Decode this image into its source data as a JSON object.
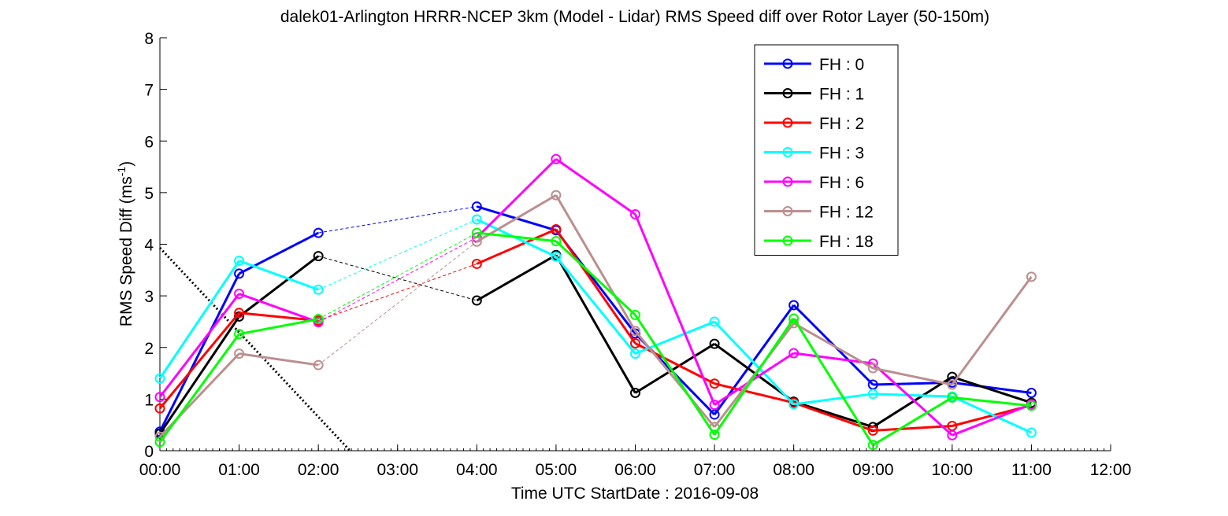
{
  "chart_data": {
    "type": "line",
    "title": "dalek01-Arlington HRRR-NCEP 3km (Model - Lidar) RMS Speed diff over Rotor Layer (50-150m)",
    "xlabel": "Time UTC    StartDate : 2016-09-08",
    "ylabel": "RMS Speed Diff (ms",
    "ylabel_sup": "-1",
    "ylabel_end": ")",
    "xlim": [
      0,
      12
    ],
    "ylim": [
      0,
      8
    ],
    "x_ticks": [
      "00:00",
      "01:00",
      "02:00",
      "03:00",
      "04:00",
      "05:00",
      "06:00",
      "07:00",
      "08:00",
      "09:00",
      "10:00",
      "11:00",
      "12:00"
    ],
    "y_ticks": [
      "0",
      "1",
      "2",
      "3",
      "4",
      "5",
      "6",
      "7",
      "8"
    ],
    "grid": false,
    "legend_position": "top-right",
    "x": [
      0,
      1,
      2,
      3,
      4,
      5,
      6,
      7,
      8,
      9,
      10,
      11
    ],
    "series": [
      {
        "name": "FH : 0",
        "color": "#0000ff",
        "values": [
          0.37,
          3.43,
          4.22,
          null,
          4.73,
          4.27,
          2.27,
          0.7,
          2.82,
          1.28,
          1.32,
          1.12
        ]
      },
      {
        "name": "FH : 1",
        "color": "#000000",
        "values": [
          0.33,
          2.6,
          3.77,
          null,
          2.91,
          3.79,
          1.12,
          2.07,
          0.95,
          0.46,
          1.43,
          0.93
        ]
      },
      {
        "name": "FH : 2",
        "color": "#ff0000",
        "values": [
          0.82,
          2.67,
          2.52,
          null,
          3.62,
          4.29,
          2.08,
          1.3,
          0.93,
          0.39,
          0.48,
          0.88
        ]
      },
      {
        "name": "FH : 3",
        "color": "#00ffff",
        "values": [
          1.4,
          3.68,
          3.12,
          null,
          4.48,
          3.76,
          1.88,
          2.5,
          0.9,
          1.1,
          1.05,
          0.35
        ]
      },
      {
        "name": "FH : 6",
        "color": "#ff00ff",
        "values": [
          1.04,
          3.04,
          2.49,
          null,
          4.13,
          5.65,
          4.58,
          0.89,
          1.89,
          1.69,
          0.3,
          0.9
        ]
      },
      {
        "name": "FH : 12",
        "color": "#bc8f8f",
        "values": [
          0.27,
          1.88,
          1.66,
          null,
          4.05,
          4.95,
          2.32,
          0.46,
          2.47,
          1.6,
          1.28,
          3.37
        ]
      },
      {
        "name": "FH : 18",
        "color": "#00ff00",
        "values": [
          0.17,
          2.26,
          2.55,
          null,
          4.22,
          4.06,
          2.63,
          0.31,
          2.56,
          0.11,
          1.03,
          0.87
        ]
      }
    ],
    "dotted_diagonal": {
      "x": [
        0,
        2.4
      ],
      "y": [
        3.93,
        0
      ]
    }
  }
}
